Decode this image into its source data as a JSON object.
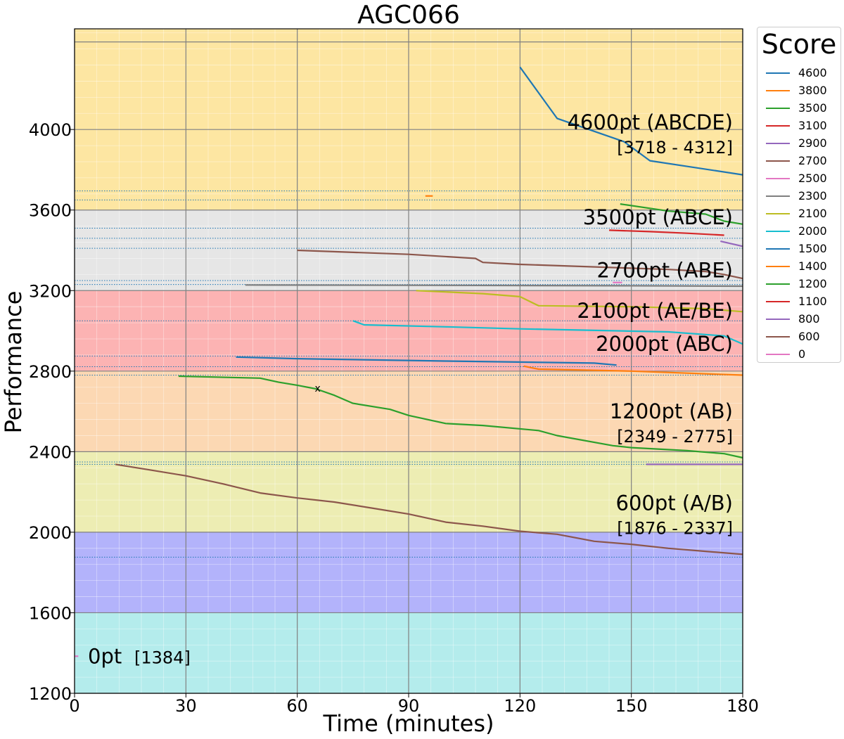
{
  "chart_data": {
    "type": "line",
    "title": "AGC066",
    "xlabel": "Time (minutes)",
    "ylabel": "Performance",
    "xlim": [
      0,
      180
    ],
    "ylim": [
      1200,
      4500
    ],
    "xticks": [
      0,
      30,
      60,
      90,
      120,
      150,
      180
    ],
    "yticks": [
      1200,
      1600,
      2000,
      2400,
      2800,
      3200,
      3600,
      4000
    ],
    "grid": true,
    "legend": {
      "title": "Score",
      "placement": "outside-top-right",
      "entries": [
        {
          "label": "4600",
          "color": "#1f77b4"
        },
        {
          "label": "3800",
          "color": "#ff7f0e"
        },
        {
          "label": "3500",
          "color": "#2ca02c"
        },
        {
          "label": "3100",
          "color": "#d62728"
        },
        {
          "label": "2900",
          "color": "#9467bd"
        },
        {
          "label": "2700",
          "color": "#8c564b"
        },
        {
          "label": "2500",
          "color": "#e377c2"
        },
        {
          "label": "2300",
          "color": "#7f7f7f"
        },
        {
          "label": "2100",
          "color": "#bcbd22"
        },
        {
          "label": "2000",
          "color": "#17becf"
        },
        {
          "label": "1500",
          "color": "#1f77b4"
        },
        {
          "label": "1400",
          "color": "#ff7f0e"
        },
        {
          "label": "1200",
          "color": "#2ca02c"
        },
        {
          "label": "1100",
          "color": "#d62728"
        },
        {
          "label": "800",
          "color": "#9467bd"
        },
        {
          "label": "600",
          "color": "#8c564b"
        },
        {
          "label": "0",
          "color": "#e377c2"
        }
      ]
    },
    "bands": [
      {
        "from": 1200,
        "to": 1600,
        "color": "#b4ecec"
      },
      {
        "from": 1600,
        "to": 2000,
        "color": "#b3b3fb"
      },
      {
        "from": 2000,
        "to": 2400,
        "color": "#ededb3"
      },
      {
        "from": 2400,
        "to": 2800,
        "color": "#fcd8b3"
      },
      {
        "from": 2800,
        "to": 3200,
        "color": "#fcb3b3"
      },
      {
        "from": 3200,
        "to": 3600,
        "color": "#e6e6e6"
      },
      {
        "from": 3600,
        "to": 4500,
        "color": "#fde6a2"
      }
    ],
    "reference_lines": [
      {
        "y": 4435,
        "style": "solid",
        "color": "#808080"
      },
      {
        "y": 3695,
        "style": "dotted",
        "color": "#1f77b4"
      },
      {
        "y": 3650,
        "style": "dotted",
        "color": "#1f77b4"
      },
      {
        "y": 3510,
        "style": "dotted",
        "color": "#1f77b4"
      },
      {
        "y": 3460,
        "style": "dotted",
        "color": "#1f77b4"
      },
      {
        "y": 3410,
        "style": "dotted",
        "color": "#1f77b4"
      },
      {
        "y": 3250,
        "style": "dotted",
        "color": "#1f77b4"
      },
      {
        "y": 3230,
        "style": "dotted",
        "color": "#1f77b4"
      },
      {
        "y": 3050,
        "style": "dotted",
        "color": "#1f77b4"
      },
      {
        "y": 2875,
        "style": "dotted",
        "color": "#1f77b4"
      },
      {
        "y": 2822,
        "style": "dotted",
        "color": "#1f77b4"
      },
      {
        "y": 2780,
        "style": "dotted",
        "color": "#1f77b4"
      },
      {
        "y": 2349,
        "style": "dotted",
        "color": "#1f77b4"
      },
      {
        "y": 2337,
        "style": "dotted",
        "color": "#1f77b4"
      },
      {
        "y": 1876,
        "style": "dotted",
        "color": "#1f77b4"
      }
    ],
    "annotations": [
      {
        "label": "4600pt (ABCDE)",
        "range": "[3718 - 4312]",
        "y": 4000
      },
      {
        "label": "3500pt (ABCE)",
        "range": "",
        "y": 3530
      },
      {
        "label": "2700pt (ABE)",
        "range": "",
        "y": 3265
      },
      {
        "label": "2100pt (AE/BE)",
        "range": "",
        "y": 3065
      },
      {
        "label": "2000pt (ABC)",
        "range": "",
        "y": 2900
      },
      {
        "label": "1200pt (AB)",
        "range": "[2349 - 2775]",
        "y": 2565
      },
      {
        "label": "600pt (A/B)",
        "range": "[1876 - 2337]",
        "y": 2110
      }
    ],
    "zero_annotation": {
      "label": "0pt",
      "range": "[1384]",
      "y": 1384
    },
    "marker": {
      "x": 65.5,
      "y": 2715,
      "symbol": "x"
    },
    "series": [
      {
        "name": "4600",
        "color": "#1f77b4",
        "x": [
          120,
          130,
          148,
          155,
          180
        ],
        "y": [
          4310,
          4055,
          3940,
          3845,
          3775
        ]
      },
      {
        "name": "3800",
        "color": "#ff7f0e",
        "x": [
          94.5,
          96.5
        ],
        "y": [
          3670,
          3670
        ]
      },
      {
        "name": "3500",
        "color": "#2ca02c",
        "x": [
          147,
          160,
          170,
          175,
          180
        ],
        "y": [
          3630,
          3595,
          3580,
          3545,
          3530
        ]
      },
      {
        "name": "3100",
        "color": "#d62728",
        "x": [
          144,
          155,
          165,
          175
        ],
        "y": [
          3500,
          3493,
          3485,
          3475
        ]
      },
      {
        "name": "2900",
        "color": "#9467bd",
        "x": [
          174,
          180
        ],
        "y": [
          3445,
          3420
        ]
      },
      {
        "name": "2700",
        "color": "#8c564b",
        "x": [
          60,
          90,
          108,
          110,
          120,
          160,
          170,
          175,
          180
        ],
        "y": [
          3400,
          3380,
          3360,
          3340,
          3330,
          3305,
          3295,
          3280,
          3260
        ]
      },
      {
        "name": "2500",
        "color": "#e377c2",
        "x": [
          145,
          147.5
        ],
        "y": [
          3240,
          3240
        ]
      },
      {
        "name": "2300",
        "color": "#7f7f7f",
        "x": [
          46,
          100,
          150,
          180
        ],
        "y": [
          3228,
          3226,
          3224,
          3222
        ]
      },
      {
        "name": "2100",
        "color": "#bcbd22",
        "x": [
          92,
          110,
          120,
          125,
          150,
          170,
          180
        ],
        "y": [
          3200,
          3185,
          3170,
          3125,
          3120,
          3110,
          3095
        ]
      },
      {
        "name": "2000",
        "color": "#17becf",
        "x": [
          75,
          78,
          100,
          120,
          160,
          175,
          180
        ],
        "y": [
          3050,
          3030,
          3020,
          3010,
          2995,
          2975,
          2935
        ]
      },
      {
        "name": "1500",
        "color": "#1f77b4",
        "x": [
          43.5,
          60,
          100,
          140,
          146
        ],
        "y": [
          2870,
          2862,
          2850,
          2840,
          2830
        ]
      },
      {
        "name": "1400",
        "color": "#ff7f0e",
        "x": [
          121,
          125,
          150,
          180
        ],
        "y": [
          2825,
          2810,
          2800,
          2780
        ]
      },
      {
        "name": "1200",
        "color": "#2ca02c",
        "x": [
          28,
          50,
          55,
          60,
          65,
          70,
          75,
          85,
          90,
          100,
          110,
          125,
          130,
          145,
          150,
          165,
          175,
          180
        ],
        "y": [
          2775,
          2765,
          2745,
          2730,
          2712,
          2680,
          2640,
          2610,
          2580,
          2540,
          2530,
          2505,
          2480,
          2430,
          2420,
          2405,
          2390,
          2370
        ]
      },
      {
        "name": "1100",
        "color": "#d62728",
        "x": [],
        "y": []
      },
      {
        "name": "800",
        "color": "#9467bd",
        "x": [
          154,
          180
        ],
        "y": [
          2337,
          2337
        ]
      },
      {
        "name": "600",
        "color": "#8c564b",
        "x": [
          11,
          20,
          30,
          40,
          50,
          60,
          70,
          80,
          90,
          100,
          110,
          120,
          130,
          140,
          150,
          160,
          170,
          180
        ],
        "y": [
          2337,
          2310,
          2280,
          2240,
          2195,
          2170,
          2150,
          2120,
          2090,
          2050,
          2030,
          2005,
          1990,
          1955,
          1940,
          1920,
          1905,
          1890
        ]
      },
      {
        "name": "0",
        "color": "#e377c2",
        "x": [
          0,
          1
        ],
        "y": [
          1384,
          1384
        ]
      }
    ]
  }
}
